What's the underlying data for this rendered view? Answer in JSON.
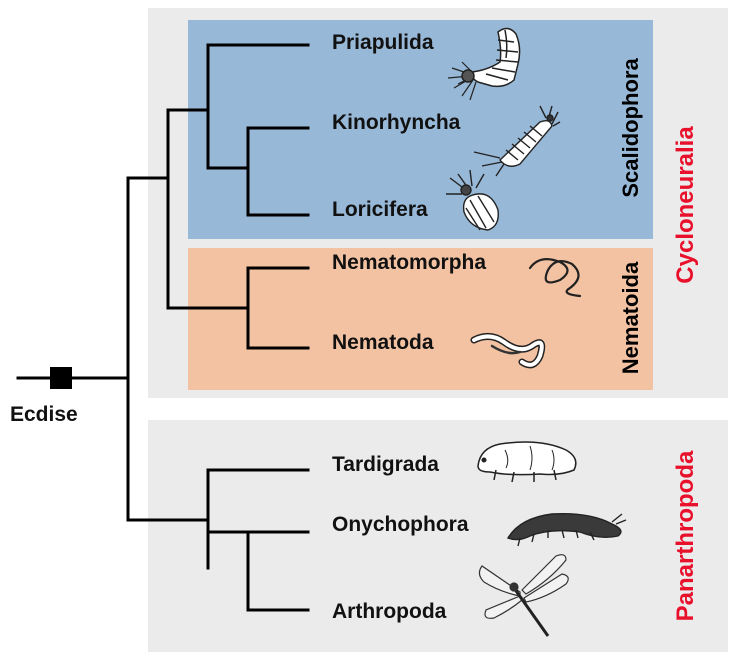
{
  "trait": {
    "label": "Ecdise",
    "marker_color": "#000000"
  },
  "groups": {
    "cycloneuralia": {
      "label": "Cycloneuralia",
      "color": "#e8102a"
    },
    "panarthropoda": {
      "label": "Panarthropoda",
      "color": "#e8102a"
    },
    "scalidophora": {
      "label": "Scalidophora",
      "color": "#97b8d6"
    },
    "nematoida": {
      "label": "Nematoida",
      "color": "#f3c2a2"
    }
  },
  "taxa": [
    {
      "label": "Priapulida",
      "icon": "priapulid-worm-icon"
    },
    {
      "label": "Kinorhyncha",
      "icon": "kinorhynch-icon"
    },
    {
      "label": "Loricifera",
      "icon": "loriciferan-icon"
    },
    {
      "label": "Nematomorpha",
      "icon": "horsehair-worm-icon"
    },
    {
      "label": "Nematoda",
      "icon": "nematode-icon"
    },
    {
      "label": "Tardigrada",
      "icon": "tardigrade-icon"
    },
    {
      "label": "Onychophora",
      "icon": "velvet-worm-icon"
    },
    {
      "label": "Arthropoda",
      "icon": "dragonfly-icon"
    }
  ],
  "panel_color": "#ebebeb"
}
